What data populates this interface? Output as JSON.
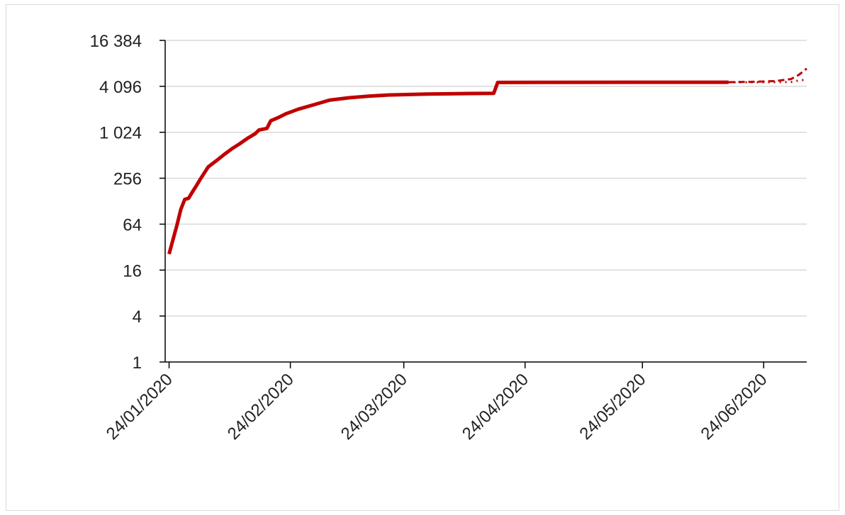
{
  "chart_data": {
    "type": "line",
    "title": "",
    "xlabel": "",
    "ylabel": "",
    "y_scale": "log2",
    "ylim": [
      1,
      16384
    ],
    "y_ticks": [
      1,
      4,
      16,
      64,
      256,
      1024,
      4096,
      16384
    ],
    "y_tick_labels": [
      "1",
      "4",
      "16",
      "64",
      "256",
      "1 024",
      "4 096",
      "16 384"
    ],
    "xlim": [
      "2020-01-23",
      "2020-07-05"
    ],
    "x_ticks": [
      "2020-01-24",
      "2020-02-24",
      "2020-03-24",
      "2020-04-24",
      "2020-05-24",
      "2020-06-24"
    ],
    "x_tick_labels": [
      "24/01/2020",
      "24/02/2020",
      "24/03/2020",
      "24/04/2020",
      "24/05/2020",
      "24/06/2020"
    ],
    "grid": true,
    "colors": {
      "series": "#c00000",
      "grid": "#d9d9d9",
      "axis": "#000000"
    },
    "series": [
      {
        "style": "solid",
        "points": [
          [
            "2020-01-24",
            26
          ],
          [
            "2020-01-25",
            40
          ],
          [
            "2020-01-26",
            62
          ],
          [
            "2020-01-27",
            100
          ],
          [
            "2020-01-28",
            135
          ],
          [
            "2020-01-29",
            140
          ],
          [
            "2020-01-30",
            170
          ],
          [
            "2020-01-31",
            205
          ],
          [
            "2020-02-01",
            250
          ],
          [
            "2020-02-02",
            300
          ],
          [
            "2020-02-03",
            360
          ],
          [
            "2020-02-05",
            430
          ],
          [
            "2020-02-07",
            520
          ],
          [
            "2020-02-09",
            620
          ],
          [
            "2020-02-11",
            720
          ],
          [
            "2020-02-13",
            850
          ],
          [
            "2020-02-15",
            980
          ],
          [
            "2020-02-16",
            1100
          ],
          [
            "2020-02-18",
            1150
          ],
          [
            "2020-02-19",
            1450
          ],
          [
            "2020-02-21",
            1600
          ],
          [
            "2020-02-23",
            1800
          ],
          [
            "2020-02-26",
            2050
          ],
          [
            "2020-03-01",
            2350
          ],
          [
            "2020-03-05",
            2700
          ],
          [
            "2020-03-10",
            2900
          ],
          [
            "2020-03-15",
            3050
          ],
          [
            "2020-03-20",
            3150
          ],
          [
            "2020-03-30",
            3250
          ],
          [
            "2020-04-10",
            3300
          ],
          [
            "2020-04-16",
            3320
          ],
          [
            "2020-04-17",
            4600
          ],
          [
            "2020-05-01",
            4620
          ],
          [
            "2020-06-01",
            4630
          ],
          [
            "2020-06-15",
            4630
          ]
        ]
      },
      {
        "style": "dashed",
        "points": [
          [
            "2020-06-15",
            4640
          ],
          [
            "2020-06-22",
            4700
          ],
          [
            "2020-06-27",
            4800
          ],
          [
            "2020-07-01",
            5100
          ],
          [
            "2020-07-03",
            5800
          ],
          [
            "2020-07-05",
            7000
          ]
        ]
      },
      {
        "style": "dotted",
        "points": [
          [
            "2020-06-15",
            4620
          ],
          [
            "2020-06-22",
            4630
          ],
          [
            "2020-06-27",
            4640
          ],
          [
            "2020-07-01",
            4660
          ],
          [
            "2020-07-03",
            4900
          ],
          [
            "2020-07-05",
            5000
          ]
        ]
      }
    ]
  }
}
